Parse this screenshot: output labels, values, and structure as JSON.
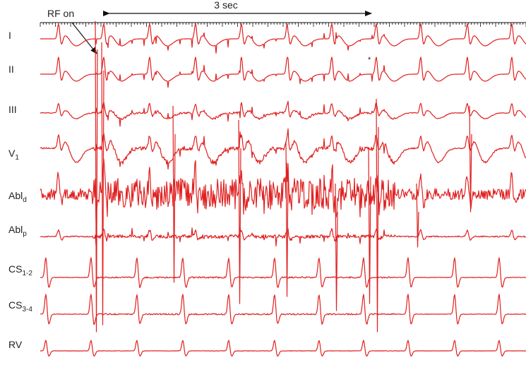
{
  "annotations": {
    "rf_on": "RF on",
    "duration": "3 sec",
    "asterisk": "*"
  },
  "leads": [
    {
      "main": "I"
    },
    {
      "main": "II"
    },
    {
      "main": "III"
    },
    {
      "main": "V",
      "sub": "1"
    },
    {
      "main": "Abl",
      "sub": "d"
    },
    {
      "main": "Abl",
      "sub": "p"
    },
    {
      "main": "CS",
      "sub": "1-2"
    },
    {
      "main": "CS",
      "sub": "3-4"
    },
    {
      "main": "RV"
    }
  ]
}
